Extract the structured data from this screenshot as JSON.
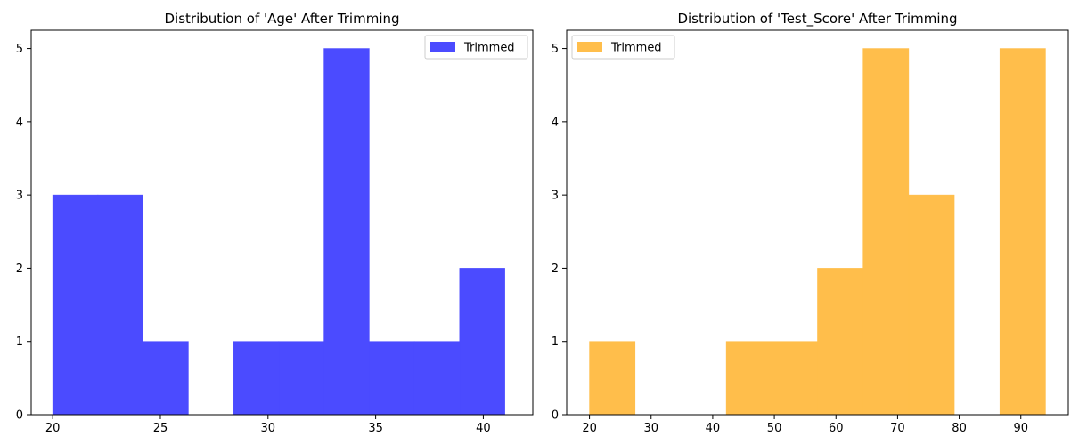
{
  "chart_data": [
    {
      "type": "histogram",
      "title": "Distribution of 'Age' After Trimming",
      "xlabel": "",
      "ylabel": "",
      "xlim": [
        19,
        42.3
      ],
      "ylim": [
        0,
        5.25
      ],
      "xticks": [
        20,
        25,
        30,
        35,
        40
      ],
      "yticks": [
        0,
        1,
        2,
        3,
        4,
        5
      ],
      "legend": {
        "position": "top-right"
      },
      "series": [
        {
          "name": "Trimmed",
          "color": "#4b4bff",
          "bins": [
            {
              "x0": 20.0,
              "x1": 22.1,
              "count": 3
            },
            {
              "x0": 22.1,
              "x1": 24.2,
              "count": 3
            },
            {
              "x0": 24.2,
              "x1": 26.3,
              "count": 1
            },
            {
              "x0": 26.3,
              "x1": 28.4,
              "count": 0
            },
            {
              "x0": 28.4,
              "x1": 30.5,
              "count": 1
            },
            {
              "x0": 30.5,
              "x1": 32.6,
              "count": 1
            },
            {
              "x0": 32.6,
              "x1": 34.7,
              "count": 5
            },
            {
              "x0": 34.7,
              "x1": 36.8,
              "count": 1
            },
            {
              "x0": 36.8,
              "x1": 38.9,
              "count": 1
            },
            {
              "x0": 38.9,
              "x1": 41.0,
              "count": 2
            }
          ]
        }
      ]
    },
    {
      "type": "histogram",
      "title": "Distribution of 'Test_Score' After Trimming",
      "xlabel": "",
      "ylabel": "",
      "xlim": [
        16.3,
        97.7
      ],
      "ylim": [
        0,
        5.25
      ],
      "xticks": [
        20,
        30,
        40,
        50,
        60,
        70,
        80,
        90
      ],
      "yticks": [
        0,
        1,
        2,
        3,
        4,
        5
      ],
      "legend": {
        "position": "top-left"
      },
      "series": [
        {
          "name": "Trimmed",
          "color": "#ffbe4b",
          "bins": [
            {
              "x0": 20.0,
              "x1": 27.4,
              "count": 1
            },
            {
              "x0": 27.4,
              "x1": 34.8,
              "count": 0
            },
            {
              "x0": 34.8,
              "x1": 42.2,
              "count": 0
            },
            {
              "x0": 42.2,
              "x1": 49.6,
              "count": 1
            },
            {
              "x0": 49.6,
              "x1": 57.0,
              "count": 1
            },
            {
              "x0": 57.0,
              "x1": 64.4,
              "count": 2
            },
            {
              "x0": 64.4,
              "x1": 71.8,
              "count": 5
            },
            {
              "x0": 71.8,
              "x1": 79.2,
              "count": 3
            },
            {
              "x0": 79.2,
              "x1": 86.6,
              "count": 0
            },
            {
              "x0": 86.6,
              "x1": 94.0,
              "count": 5
            }
          ]
        }
      ]
    }
  ]
}
